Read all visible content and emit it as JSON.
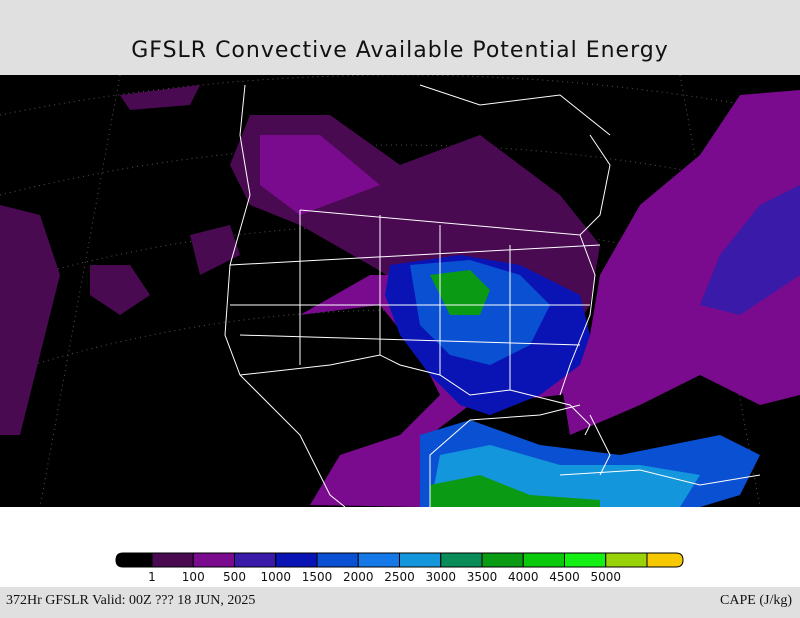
{
  "header": {
    "title": "GFSLR Convective Available Potential Energy"
  },
  "legend": {
    "colors": [
      "#000000",
      "#4a0a52",
      "#7a0a8e",
      "#3a1aa8",
      "#0a14b4",
      "#0a50d2",
      "#1478e6",
      "#1496dc",
      "#0a8c5a",
      "#0a9a14",
      "#0ac80a",
      "#14f014",
      "#9ad20a",
      "#f5c800"
    ],
    "levels": [
      1,
      100,
      500,
      1000,
      1500,
      2000,
      2500,
      3000,
      3500,
      4000,
      4500,
      5000
    ]
  },
  "footer": {
    "valid": "372Hr GFSLR Valid: 00Z ??? 18 JUN, 2025",
    "units": "CAPE (J/kg)"
  }
}
